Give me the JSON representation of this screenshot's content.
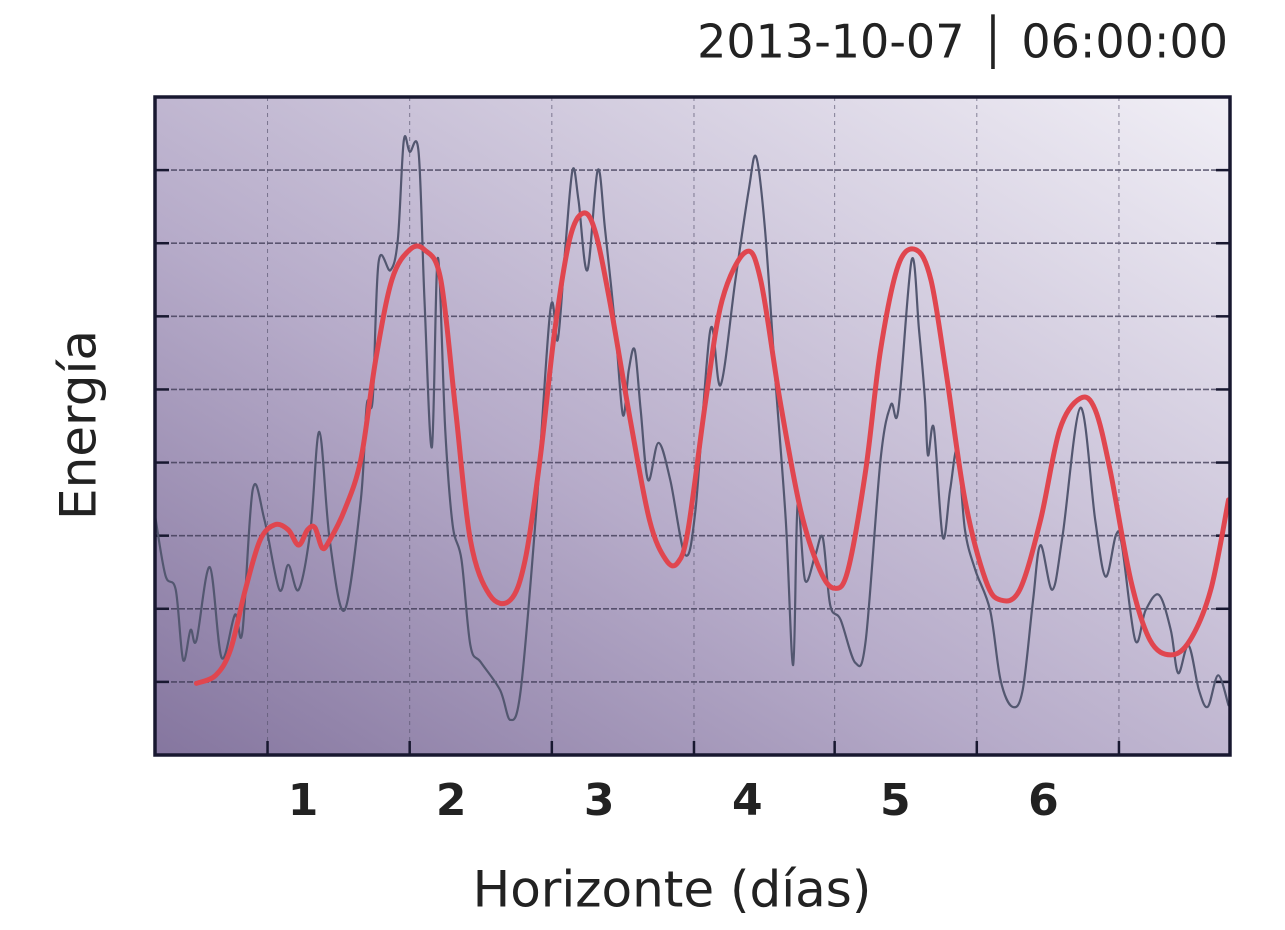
{
  "chart_data": {
    "type": "line",
    "title": "2013-10-07 │ 06:00:00",
    "x_label": "Horizonte (días)",
    "y_label": "Energía",
    "xlim": [
      0,
      7.26
    ],
    "xticks": [
      1,
      2,
      3,
      4,
      5,
      6
    ],
    "xgrid": [
      0.76,
      1.72,
      2.68,
      3.64,
      4.59,
      5.55,
      6.51
    ],
    "ylim": [
      0,
      9
    ],
    "yticks": [
      1,
      2,
      3,
      4,
      5,
      6,
      7,
      8
    ],
    "grid": true,
    "series": [
      {
        "color": "#535770",
        "x": [
          0,
          0.07,
          0.14,
          0.19,
          0.24,
          0.28,
          0.37,
          0.45,
          0.54,
          0.59,
          0.66,
          0.74,
          0.84,
          0.9,
          0.97,
          1.05,
          1.11,
          1.18,
          1.28,
          1.39,
          1.43,
          1.47,
          1.51,
          1.59,
          1.64,
          1.68,
          1.72,
          1.78,
          1.82,
          1.87,
          1.91,
          1.96,
          2.01,
          2.07,
          2.13,
          2.2,
          2.33,
          2.4,
          2.47,
          2.57,
          2.67,
          2.72,
          2.77,
          2.82,
          2.86,
          2.92,
          2.99,
          3.04,
          3.11,
          3.16,
          3.2,
          3.24,
          3.28,
          3.33,
          3.4,
          3.48,
          3.58,
          3.65,
          3.75,
          3.82,
          3.92,
          4.01,
          4.06,
          4.12,
          4.19,
          4.26,
          4.31,
          4.34,
          4.39,
          4.46,
          4.51,
          4.56,
          4.63,
          4.73,
          4.8,
          4.9,
          4.97,
          5.02,
          5.11,
          5.16,
          5.2,
          5.22,
          5.26,
          5.32,
          5.37,
          5.42,
          5.47,
          5.54,
          5.64,
          5.71,
          5.79,
          5.86,
          5.93,
          5.98,
          6.06,
          6.13,
          6.25,
          6.35,
          6.42,
          6.49,
          6.53,
          6.62,
          6.69,
          6.78,
          6.86,
          6.91,
          6.98,
          7.05,
          7.11,
          7.18,
          7.25
        ],
        "values": [
          3.28,
          2.46,
          2.26,
          1.3,
          1.71,
          1.57,
          2.57,
          1.33,
          1.92,
          1.68,
          3.63,
          3.21,
          2.26,
          2.6,
          2.26,
          3.08,
          4.42,
          2.94,
          1.98,
          3.49,
          4.79,
          4.86,
          6.74,
          6.63,
          7.05,
          8.4,
          8.25,
          8.25,
          6.22,
          4.21,
          6.8,
          4.45,
          3.15,
          2.67,
          1.5,
          1.27,
          0.89,
          0.48,
          0.89,
          3.21,
          6.09,
          5.68,
          6.91,
          8.0,
          7.59,
          6.63,
          8.0,
          7.18,
          5.81,
          4.65,
          5.27,
          5.54,
          4.72,
          3.76,
          4.27,
          3.76,
          2.74,
          3.35,
          5.81,
          5.06,
          6.5,
          7.73,
          8.18,
          7.18,
          5.13,
          3.21,
          1.23,
          3.42,
          2.39,
          2.74,
          2.97,
          2.05,
          1.85,
          1.26,
          1.57,
          4.04,
          4.79,
          4.72,
          6.77,
          5.81,
          4.86,
          4.1,
          4.47,
          2.98,
          3.63,
          4.17,
          3.08,
          2.53,
          1.98,
          1.03,
          0.66,
          0.89,
          2.12,
          2.87,
          2.26,
          3.01,
          4.75,
          3.21,
          2.44,
          3.01,
          2.87,
          1.57,
          1.98,
          2.19,
          1.71,
          1.12,
          1.5,
          0.89,
          0.66,
          1.09,
          0.68
        ]
      },
      {
        "color": "#e0464f",
        "x": [
          0.28,
          0.41,
          0.51,
          0.61,
          0.71,
          0.81,
          0.9,
          0.97,
          1.03,
          1.08,
          1.13,
          1.18,
          1.28,
          1.39,
          1.49,
          1.6,
          1.72,
          1.82,
          1.93,
          2.03,
          2.13,
          2.26,
          2.4,
          2.5,
          2.6,
          2.7,
          2.8,
          2.89,
          2.97,
          3.07,
          3.21,
          3.34,
          3.45,
          3.53,
          3.6,
          3.72,
          3.83,
          3.99,
          4.09,
          4.22,
          4.36,
          4.49,
          4.59,
          4.68,
          4.8,
          4.9,
          5.02,
          5.14,
          5.24,
          5.34,
          5.47,
          5.61,
          5.71,
          5.84,
          5.98,
          6.11,
          6.25,
          6.35,
          6.45,
          6.59,
          6.72,
          6.86,
          6.99,
          7.13,
          7.25
        ],
        "values": [
          0.98,
          1.09,
          1.44,
          2.26,
          2.94,
          3.15,
          3.08,
          2.87,
          3.08,
          3.11,
          2.83,
          2.94,
          3.35,
          4.04,
          5.4,
          6.5,
          6.91,
          6.91,
          6.5,
          4.72,
          2.94,
          2.19,
          2.12,
          2.67,
          4.04,
          5.81,
          7.05,
          7.41,
          7.18,
          6.22,
          4.58,
          3.21,
          2.67,
          2.63,
          3.08,
          4.86,
          6.22,
          6.88,
          6.5,
          4.86,
          3.35,
          2.53,
          2.28,
          2.53,
          3.9,
          5.54,
          6.7,
          6.91,
          6.5,
          5.27,
          3.49,
          2.39,
          2.12,
          2.26,
          3.21,
          4.45,
          4.88,
          4.72,
          3.9,
          2.39,
          1.57,
          1.37,
          1.57,
          2.26,
          3.49
        ]
      }
    ]
  }
}
